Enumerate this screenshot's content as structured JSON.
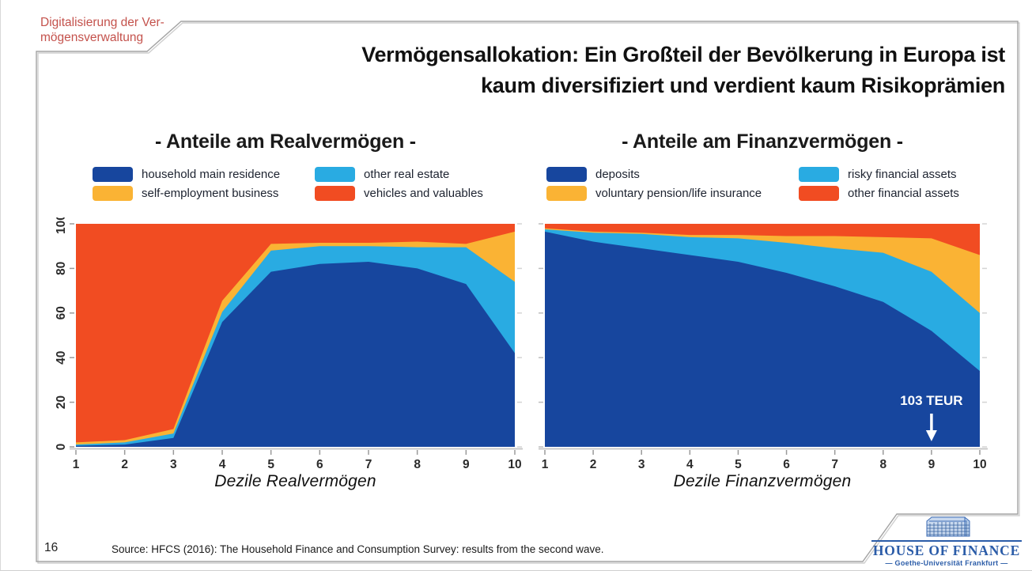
{
  "slide": {
    "corner_label": "Digitalisierung der Ver-\nmögensverwaltung",
    "title_line1": "Vermögensallokation: Ein Großteil der Bevölkerung in Europa ist",
    "title_line2": "kaum diversifiziert und verdient kaum Risikoprämien",
    "page_number": "16",
    "source": "Source: HFCS (2016): The Household Finance and Consumption Survey: results from the second wave.",
    "logo": {
      "name": "HOUSE OF FINANCE",
      "subtitle": "— Goethe-Universität Frankfurt —"
    }
  },
  "colors": {
    "dark_blue": "#17469E",
    "light_blue": "#29ABE2",
    "yellow": "#FAB334",
    "red_orange": "#F14C22",
    "corner_label_red": "#C4524C",
    "logo_blue": "#2B5CA8",
    "frame_gray": "#A3A3A3"
  },
  "chart_data": [
    {
      "type": "area",
      "stacked": true,
      "title": "- Anteile am Realvermögen -",
      "xlabel": "Dezile Realvermögen",
      "categories": [
        "1",
        "2",
        "3",
        "4",
        "5",
        "6",
        "7",
        "8",
        "9",
        "10"
      ],
      "ylim": [
        0,
        100
      ],
      "yticks": [
        0,
        20,
        40,
        60,
        80,
        100
      ],
      "show_y_tick_labels": true,
      "legend_position": "top",
      "series": [
        {
          "name": "household main residence",
          "color": "#17469E",
          "values": [
            0.5,
            1,
            4,
            56,
            78.5,
            82,
            83,
            80,
            73,
            42
          ]
        },
        {
          "name": "other real estate",
          "color": "#29ABE2",
          "values": [
            0.5,
            1,
            2,
            4.5,
            9.5,
            8,
            7,
            9.5,
            16.5,
            32
          ]
        },
        {
          "name": "self-employment business",
          "color": "#FAB334",
          "values": [
            1,
            1,
            2,
            5,
            3,
            1.5,
            1.5,
            2.5,
            1.5,
            22.5
          ]
        },
        {
          "name": "vehicles and valuables",
          "color": "#F14C22",
          "values": [
            98,
            97,
            92,
            34.5,
            9,
            8.5,
            8.5,
            8,
            9,
            3.5
          ]
        }
      ],
      "legend": [
        {
          "label": "household main residence",
          "color": "#17469E"
        },
        {
          "label": "other real estate",
          "color": "#29ABE2"
        },
        {
          "label": "self-employment business",
          "color": "#FAB334"
        },
        {
          "label": "vehicles and valuables",
          "color": "#F14C22"
        }
      ],
      "annotation": null
    },
    {
      "type": "area",
      "stacked": true,
      "title": "- Anteile am Finanzvermögen -",
      "xlabel": "Dezile Finanzvermögen",
      "categories": [
        "1",
        "2",
        "3",
        "4",
        "5",
        "6",
        "7",
        "8",
        "9",
        "10"
      ],
      "ylim": [
        0,
        100
      ],
      "yticks": [
        0,
        20,
        40,
        60,
        80,
        100
      ],
      "show_y_tick_labels": false,
      "legend_position": "top",
      "series": [
        {
          "name": "deposits",
          "color": "#17469E",
          "values": [
            96.5,
            92,
            89,
            86,
            83,
            78,
            72,
            65,
            52,
            34
          ]
        },
        {
          "name": "risky financial assets",
          "color": "#29ABE2",
          "values": [
            1,
            4,
            6.5,
            8,
            10.5,
            13.5,
            17,
            22,
            26.5,
            26
          ]
        },
        {
          "name": "voluntary pension/life insurance",
          "color": "#FAB334",
          "values": [
            0.5,
            0.5,
            0.5,
            1,
            1.5,
            3,
            5.5,
            7,
            15,
            26
          ]
        },
        {
          "name": "other financial assets",
          "color": "#F14C22",
          "values": [
            2,
            3.5,
            4,
            5,
            5,
            5.5,
            5.5,
            6,
            6.5,
            14
          ]
        }
      ],
      "legend": [
        {
          "label": "deposits",
          "color": "#17469E"
        },
        {
          "label": "risky financial assets",
          "color": "#29ABE2"
        },
        {
          "label": "voluntary pension/life insurance",
          "color": "#FAB334"
        },
        {
          "label": "other financial assets",
          "color": "#F14C22"
        }
      ],
      "annotation": {
        "text": "103 TEUR",
        "x_category": "9"
      }
    }
  ]
}
